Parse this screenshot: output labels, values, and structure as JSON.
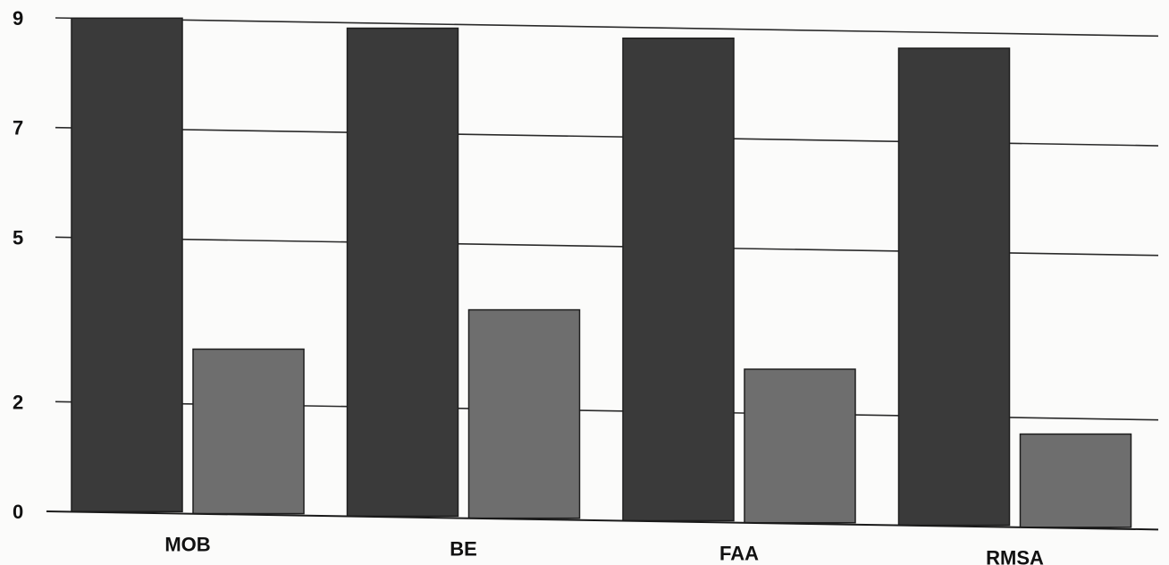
{
  "chart_data": {
    "type": "bar",
    "title": "",
    "xlabel": "",
    "ylabel": "",
    "ylim": [
      0,
      9
    ],
    "yticks": [
      "0",
      "2",
      "5",
      "7",
      "9"
    ],
    "grid": true,
    "categories": [
      "MOB",
      "BE",
      "FAA",
      "RMSA"
    ],
    "series": [
      {
        "values": [
          9.0,
          8.9,
          8.8,
          8.7
        ]
      },
      {
        "values": [
          3.0,
          3.8,
          2.8,
          1.7
        ]
      }
    ],
    "colors": [
      "#3a3a3a",
      "#6e6e6e"
    ]
  }
}
